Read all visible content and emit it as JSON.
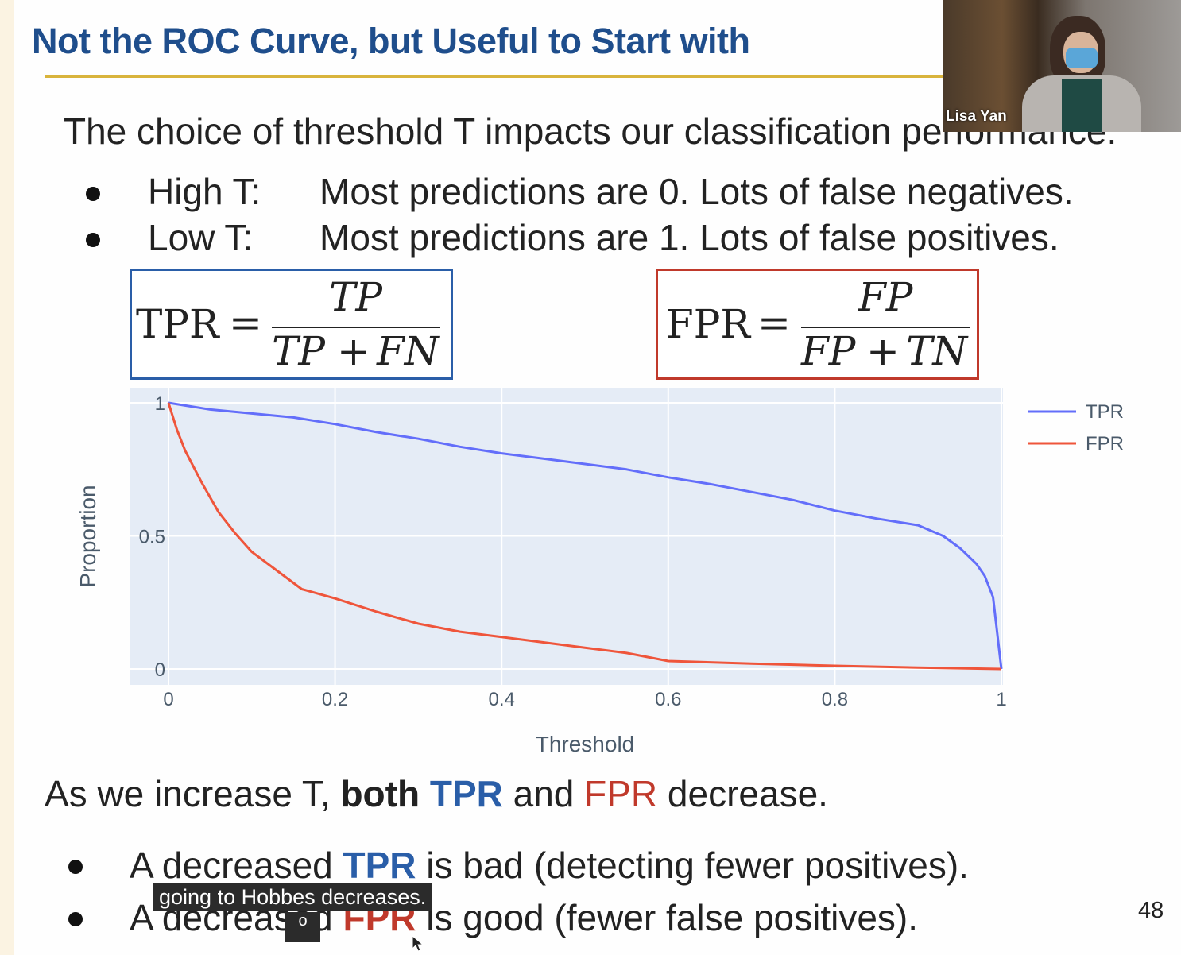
{
  "slide": {
    "title": "Not the ROC Curve, but Useful to Start with",
    "intro": "The choice of threshold T impacts our classification performance.",
    "bullets": [
      {
        "label": "High T:",
        "text": "Most predictions are 0. Lots of false negatives."
      },
      {
        "label": "Low T:",
        "text": "Most predictions are 1. Lots of false positives."
      }
    ],
    "formulas": {
      "tpr": {
        "lhs": "TPR",
        "eq": "=",
        "num": "TP",
        "den_a": "TP",
        "plus": "+",
        "den_b": "FN",
        "border_color": "#2a5ea8"
      },
      "fpr": {
        "lhs": "FPR",
        "eq": "=",
        "num": "FP",
        "den_a": "FP",
        "plus": "+",
        "den_b": "TN",
        "border_color": "#c0392b"
      }
    },
    "summary": {
      "prefix": "As we increase T, ",
      "both": "both",
      "tpr": "TPR",
      "and": " and ",
      "fpr": "FPR",
      "suffix": " decrease."
    },
    "consequences": [
      {
        "prefix": "A decreased ",
        "key": "TPR",
        "suffix": " is bad (detecting fewer positives)."
      },
      {
        "prefix": "A decreased ",
        "key": "FPR",
        "suffix": " is good (fewer false positives)."
      }
    ],
    "page_number": "48"
  },
  "webcam": {
    "name": "Lisa Yan"
  },
  "caption": {
    "text": "going to Hobbes decreases.",
    "fragment": "o"
  },
  "colors": {
    "title": "#1f4e8c",
    "tpr": "#2a5ea8",
    "fpr": "#c0392b",
    "tpr_line": "#636efa",
    "fpr_line": "#ef553b",
    "plot_bg": "#e5ecf6"
  },
  "chart_data": {
    "type": "line",
    "xlabel": "Threshold",
    "ylabel": "Proportion",
    "xlim": [
      0,
      1
    ],
    "ylim": [
      0,
      1
    ],
    "x_ticks": [
      "0",
      "0.2",
      "0.4",
      "0.6",
      "0.8",
      "1"
    ],
    "y_ticks": [
      "0",
      "0.5",
      "1"
    ],
    "legend_position": "top-right",
    "grid": true,
    "series": [
      {
        "name": "TPR",
        "x": [
          0,
          0.02,
          0.05,
          0.1,
          0.15,
          0.2,
          0.25,
          0.3,
          0.35,
          0.4,
          0.45,
          0.5,
          0.55,
          0.6,
          0.65,
          0.7,
          0.75,
          0.8,
          0.85,
          0.9,
          0.93,
          0.95,
          0.97,
          0.98,
          0.99,
          1.0
        ],
        "y": [
          1.0,
          0.99,
          0.975,
          0.96,
          0.945,
          0.92,
          0.89,
          0.865,
          0.835,
          0.81,
          0.79,
          0.77,
          0.75,
          0.72,
          0.695,
          0.665,
          0.635,
          0.595,
          0.565,
          0.54,
          0.5,
          0.455,
          0.395,
          0.35,
          0.27,
          0.0
        ]
      },
      {
        "name": "FPR",
        "x": [
          0,
          0.01,
          0.02,
          0.04,
          0.06,
          0.08,
          0.1,
          0.13,
          0.16,
          0.2,
          0.25,
          0.3,
          0.35,
          0.4,
          0.45,
          0.5,
          0.55,
          0.6,
          0.7,
          0.8,
          0.9,
          1.0
        ],
        "y": [
          1.0,
          0.9,
          0.82,
          0.7,
          0.59,
          0.51,
          0.44,
          0.37,
          0.3,
          0.265,
          0.215,
          0.17,
          0.14,
          0.12,
          0.1,
          0.08,
          0.06,
          0.03,
          0.02,
          0.012,
          0.005,
          0.0
        ]
      }
    ]
  }
}
